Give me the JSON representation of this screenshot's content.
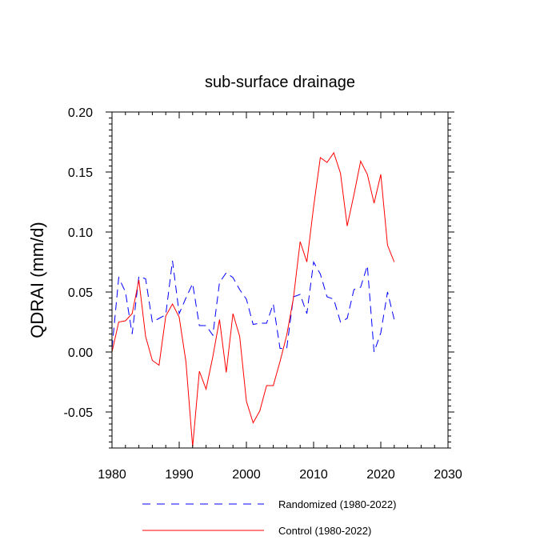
{
  "chart_data": {
    "type": "line",
    "title": "sub-surface drainage",
    "ylabel": "QDRAI  (mm/d)",
    "xlabel": "",
    "xlim": [
      1980,
      2030
    ],
    "ylim": [
      -0.08,
      0.2
    ],
    "x_ticks": [
      1980,
      1990,
      2000,
      2010,
      2020,
      2030
    ],
    "x_tick_labels": [
      "1980",
      "1990",
      "2000",
      "2010",
      "2020",
      "2030"
    ],
    "y_ticks": [
      -0.05,
      0.0,
      0.05,
      0.1,
      0.15,
      0.2
    ],
    "y_tick_labels": [
      "-0.05",
      "0.00",
      "0.05",
      "0.10",
      "0.15",
      "0.20"
    ],
    "x": [
      1980,
      1981,
      1982,
      1983,
      1984,
      1985,
      1986,
      1987,
      1988,
      1989,
      1990,
      1991,
      1992,
      1993,
      1994,
      1995,
      1996,
      1997,
      1998,
      1999,
      2000,
      2001,
      2002,
      2003,
      2004,
      2005,
      2006,
      2007,
      2008,
      2009,
      2010,
      2011,
      2012,
      2013,
      2014,
      2015,
      2016,
      2017,
      2018,
      2019,
      2020,
      2021,
      2022
    ],
    "series": [
      {
        "name": "Randomized (1980-2022)",
        "color": "#0000ff",
        "dash": "dashed",
        "values": [
          0.003,
          0.062,
          0.05,
          0.015,
          0.063,
          0.061,
          0.025,
          0.028,
          0.031,
          0.076,
          0.032,
          0.045,
          0.057,
          0.022,
          0.022,
          0.014,
          0.058,
          0.066,
          0.062,
          0.052,
          0.044,
          0.023,
          0.024,
          0.024,
          0.04,
          0.003,
          0.003,
          0.046,
          0.048,
          0.032,
          0.075,
          0.065,
          0.046,
          0.044,
          0.025,
          0.028,
          0.052,
          0.054,
          0.072,
          0.0,
          0.016,
          0.05,
          0.027
        ]
      },
      {
        "name": "Control (1980-2022)",
        "color": "#ff0000",
        "dash": "solid",
        "values": [
          0.0,
          0.025,
          0.026,
          0.032,
          0.06,
          0.013,
          -0.007,
          -0.011,
          0.03,
          0.04,
          0.029,
          -0.008,
          -0.079,
          -0.016,
          -0.031,
          -0.004,
          0.027,
          -0.017,
          0.032,
          0.013,
          -0.041,
          -0.059,
          -0.049,
          -0.028,
          -0.028,
          -0.008,
          0.014,
          0.045,
          0.092,
          0.075,
          0.121,
          0.162,
          0.158,
          0.166,
          0.149,
          0.105,
          0.131,
          0.159,
          0.148,
          0.124,
          0.148,
          0.089,
          0.075
        ]
      }
    ],
    "legend_position": "bottom"
  }
}
